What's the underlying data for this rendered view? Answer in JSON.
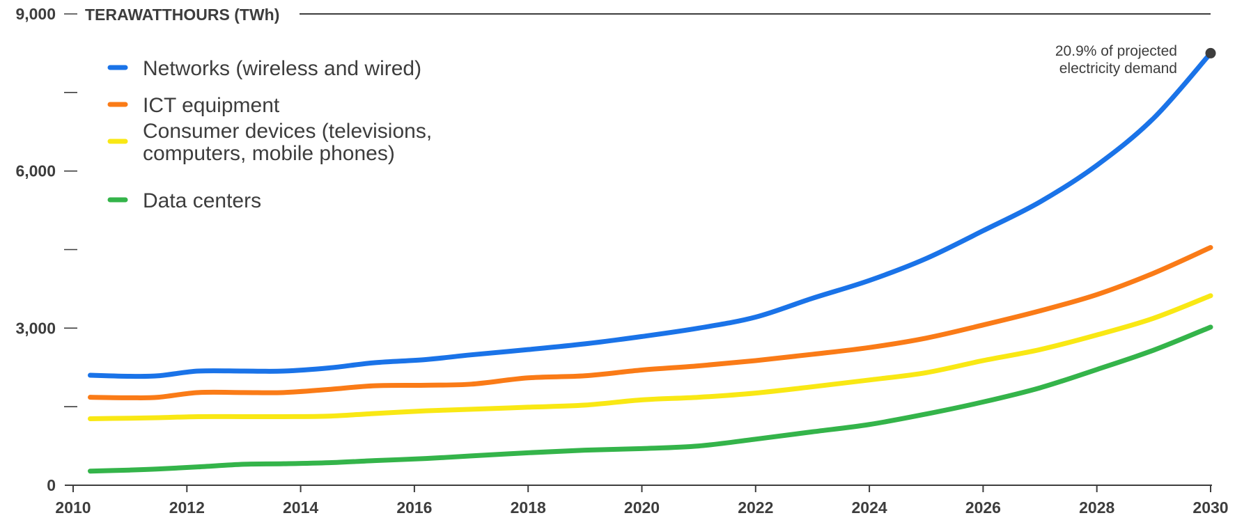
{
  "chart_data": {
    "type": "line",
    "ylabel": "TERAWATTHOURS (TWh)",
    "xlim": [
      2010,
      2030
    ],
    "ylim": [
      0,
      9000
    ],
    "x_ticks": [
      "2010",
      "2012",
      "2014",
      "2016",
      "2018",
      "2020",
      "2022",
      "2024",
      "2026",
      "2028",
      "2030"
    ],
    "x_tick_values": [
      2010,
      2012,
      2014,
      2016,
      2018,
      2020,
      2022,
      2024,
      2026,
      2028,
      2030
    ],
    "y_ticks": [
      {
        "value": 0,
        "label": "0"
      },
      {
        "value": 1500,
        "label": ""
      },
      {
        "value": 3000,
        "label": "3,000"
      },
      {
        "value": 4500,
        "label": ""
      },
      {
        "value": 6000,
        "label": "6,000"
      },
      {
        "value": 7500,
        "label": ""
      },
      {
        "value": 9000,
        "label": "9,000"
      }
    ],
    "grid": false,
    "legend_placement": "top-left",
    "series": [
      {
        "name": "Networks (wireless and wired)",
        "color": "#1a73e8",
        "x": [
          2010.3,
          2011,
          2011.5,
          2012.2,
          2013,
          2013.7,
          2014.5,
          2015.3,
          2016.2,
          2017,
          2018,
          2019,
          2020,
          2021,
          2022,
          2023,
          2024,
          2025,
          2026,
          2027,
          2028,
          2029,
          2030
        ],
        "values": [
          2100,
          2080,
          2090,
          2180,
          2180,
          2180,
          2240,
          2340,
          2400,
          2490,
          2590,
          2700,
          2840,
          3000,
          3210,
          3570,
          3910,
          4330,
          4860,
          5410,
          6110,
          7010,
          8250
        ]
      },
      {
        "name": "ICT equipment",
        "color": "#fa7b17",
        "x": [
          2010.3,
          2011,
          2011.5,
          2012.2,
          2013,
          2013.7,
          2014.5,
          2015.3,
          2016.2,
          2017,
          2018,
          2019,
          2020,
          2021,
          2022,
          2023,
          2024,
          2025,
          2026,
          2027,
          2028,
          2029,
          2030
        ],
        "values": [
          1680,
          1670,
          1680,
          1770,
          1770,
          1770,
          1830,
          1900,
          1910,
          1930,
          2050,
          2090,
          2200,
          2280,
          2380,
          2500,
          2630,
          2810,
          3060,
          3330,
          3640,
          4050,
          4540
        ]
      },
      {
        "name": "Consumer devices (televisions, computers, mobile phones)",
        "color": "#f9e814",
        "x": [
          2010.3,
          2011,
          2011.5,
          2012.2,
          2013,
          2013.7,
          2014.5,
          2015.3,
          2016.2,
          2017,
          2018,
          2019,
          2020,
          2021,
          2022,
          2023,
          2024,
          2025,
          2026,
          2027,
          2028,
          2029,
          2030
        ],
        "values": [
          1270,
          1280,
          1290,
          1310,
          1310,
          1310,
          1320,
          1370,
          1420,
          1450,
          1490,
          1530,
          1630,
          1680,
          1760,
          1880,
          2010,
          2150,
          2380,
          2590,
          2870,
          3190,
          3620
        ]
      },
      {
        "name": "Data centers",
        "color": "#34b44a",
        "x": [
          2010.3,
          2011,
          2011.5,
          2012.2,
          2013,
          2013.7,
          2014.5,
          2015.3,
          2016.2,
          2017,
          2018,
          2019,
          2020,
          2021,
          2022,
          2023,
          2024,
          2025,
          2026,
          2027,
          2028,
          2029,
          2030
        ],
        "values": [
          270,
          290,
          310,
          350,
          400,
          410,
          430,
          470,
          510,
          560,
          620,
          670,
          700,
          750,
          880,
          1020,
          1160,
          1360,
          1590,
          1860,
          2210,
          2580,
          3020
        ]
      }
    ],
    "annotation": {
      "x": 2030,
      "y": 8250,
      "lines": [
        "20.9% of projected",
        "electricity demand"
      ]
    }
  }
}
